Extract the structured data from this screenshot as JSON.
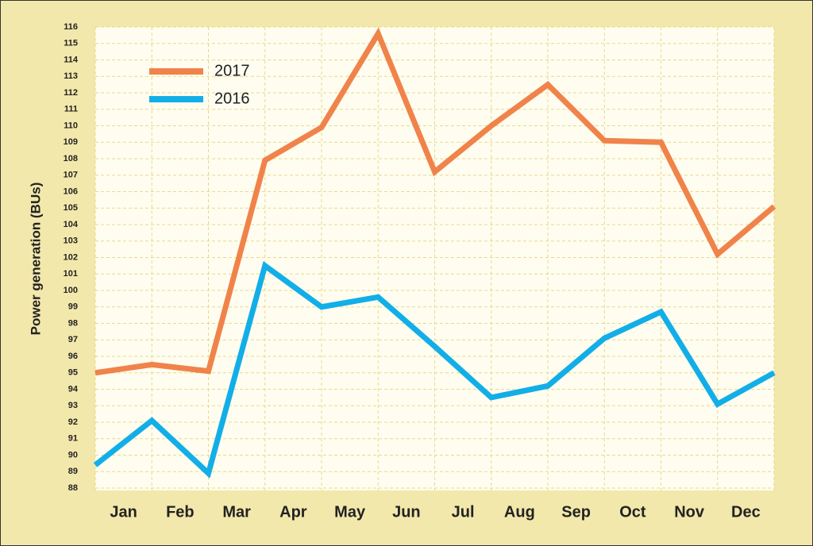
{
  "chart_data": {
    "type": "line",
    "ylabel": "Power generation (BUs)",
    "x": [
      0,
      1,
      2,
      3,
      4,
      5,
      6,
      7,
      8,
      9,
      10,
      11,
      12
    ],
    "xlim": [
      0,
      12
    ],
    "xticks": [
      {
        "value": 0.5,
        "label": "Jan"
      },
      {
        "value": 1.5,
        "label": "Feb"
      },
      {
        "value": 2.5,
        "label": "Mar"
      },
      {
        "value": 3.5,
        "label": "Apr"
      },
      {
        "value": 4.5,
        "label": "May"
      },
      {
        "value": 5.5,
        "label": "Jun"
      },
      {
        "value": 6.5,
        "label": "Jul"
      },
      {
        "value": 7.5,
        "label": "Aug"
      },
      {
        "value": 8.5,
        "label": "Sep"
      },
      {
        "value": 9.5,
        "label": "Oct"
      },
      {
        "value": 10.5,
        "label": "Nov"
      },
      {
        "value": 11.5,
        "label": "Dec"
      }
    ],
    "ylim": [
      88,
      116
    ],
    "yticks": [
      88,
      89,
      90,
      91,
      92,
      93,
      94,
      95,
      96,
      97,
      98,
      99,
      100,
      101,
      102,
      103,
      104,
      105,
      106,
      107,
      108,
      109,
      110,
      111,
      112,
      113,
      114,
      115,
      116
    ],
    "grid": true,
    "legend": "upper left",
    "series": [
      {
        "name": "2017",
        "color": "#f0834a",
        "values": [
          95,
          95.5,
          95.1,
          107.9,
          109.9,
          115.6,
          107.2,
          110,
          112.5,
          109.1,
          109,
          102.2,
          105.1
        ]
      },
      {
        "name": "2016",
        "color": "#12aee8",
        "values": [
          89.4,
          92.1,
          88.9,
          101.5,
          99,
          99.6,
          96.6,
          93.5,
          94.2,
          97.1,
          98.7,
          93.1,
          95
        ]
      }
    ]
  }
}
